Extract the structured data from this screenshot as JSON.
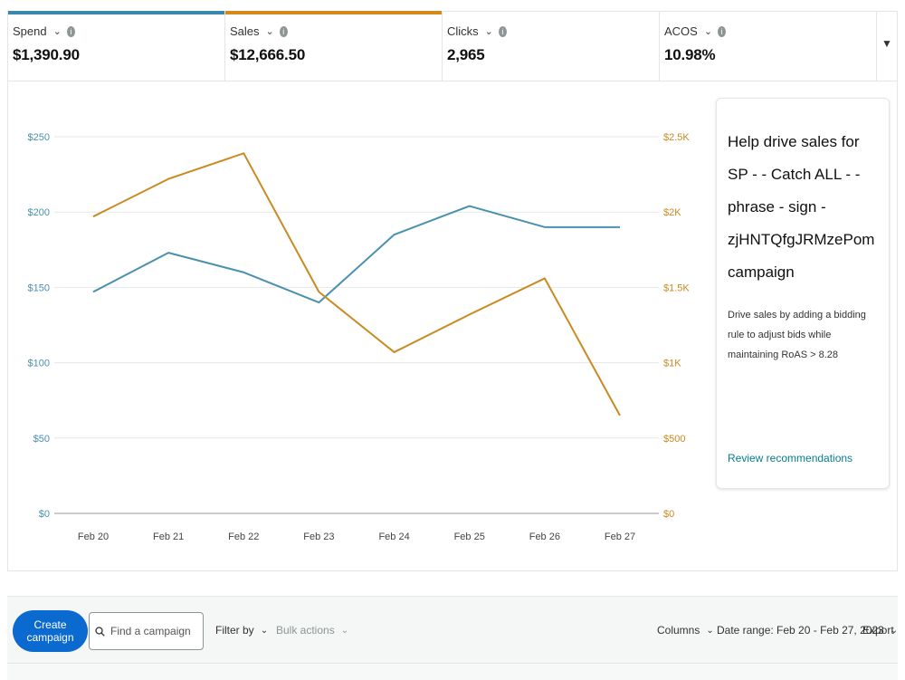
{
  "metrics": [
    {
      "label": "Spend",
      "value": "$1,390.90",
      "accent": "#3a87ad"
    },
    {
      "label": "Sales",
      "value": "$12,666.50",
      "accent": "#d48a1a"
    },
    {
      "label": "Clicks",
      "value": "2,965",
      "accent": ""
    },
    {
      "label": "ACOS",
      "value": "10.98%",
      "accent": ""
    }
  ],
  "icons": {
    "metric_dropdown": "chevron-down-icon",
    "metric_info": "info-icon",
    "metrics_toggle": "chevron-down-icon",
    "search": "search-icon"
  },
  "chart_data": {
    "type": "line",
    "categories": [
      "Feb 20",
      "Feb 21",
      "Feb 22",
      "Feb 23",
      "Feb 24",
      "Feb 25",
      "Feb 26",
      "Feb 27"
    ],
    "series": [
      {
        "name": "Spend",
        "axis": "left",
        "color": "#4a90b0",
        "values": [
          147,
          173,
          160,
          140,
          185,
          204,
          190,
          190
        ]
      },
      {
        "name": "Sales",
        "axis": "right",
        "color": "#c98a22",
        "values": [
          1970,
          2220,
          2390,
          1470,
          1070,
          1320,
          1560,
          650
        ]
      }
    ],
    "left_axis": {
      "ticks": [
        "$0",
        "$50",
        "$100",
        "$150",
        "$200",
        "$250"
      ],
      "range": [
        0,
        250
      ],
      "color": "#4a90b0"
    },
    "right_axis": {
      "ticks": [
        "$0",
        "$500",
        "$1K",
        "$1.5K",
        "$2K",
        "$2.5K"
      ],
      "range": [
        0,
        2500
      ],
      "color": "#c98a22"
    },
    "grid": true
  },
  "recommendation": {
    "title": "Help drive sales for SP - - Catch ALL - - phrase - sign - zjHNTQfgJRMzePom campaign",
    "description": "Drive sales by adding a bidding rule to adjust bids while maintaining RoAS > 8.28",
    "link": "Review recommendations"
  },
  "toolbar": {
    "create_label": "Create campaign",
    "search_placeholder": "Find a campaign",
    "filter_label": "Filter by",
    "bulk_label": "Bulk actions",
    "columns_label": "Columns",
    "date_range_label": "Date range: Feb 20 - Feb 27, 2023",
    "export_label": "Export"
  },
  "colors": {
    "primary_button": "#0a6ad0",
    "link": "#067d8e"
  }
}
